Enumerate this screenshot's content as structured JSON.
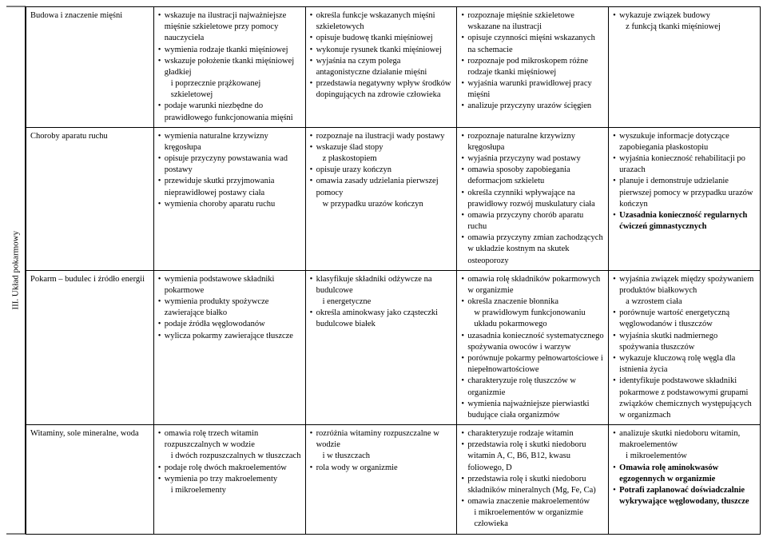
{
  "sideLabel": "III. Układ pokarmowy",
  "rows": [
    {
      "topic": "Budowa i znaczenie mięśni",
      "c2": [
        {
          "t": "wskazuje na ilustracji najważniejsze mięśnie szkieletowe przy pomocy nauczyciela"
        },
        {
          "t": "wymienia rodzaje tkanki mięśniowej"
        },
        {
          "t": "wskazuje położenie tkanki mięśniowej gładkiej",
          "sub": "i poprzecznie prążkowanej szkieletowej"
        },
        {
          "t": "podaje warunki niezbędne do prawidłowego funkcjonowania mięśni"
        }
      ],
      "c3": [
        {
          "t": "określa funkcje wskazanych mięśni szkieletowych"
        },
        {
          "t": "opisuje budowę tkanki mięśniowej"
        },
        {
          "t": "wykonuje rysunek tkanki mięśniowej"
        },
        {
          "t": "wyjaśnia na czym polega antagonistyczne działanie mięśni"
        },
        {
          "t": "przedstawia negatywny wpływ środków dopingujących na zdrowie człowieka"
        }
      ],
      "c4": [
        {
          "t": "rozpoznaje mięśnie szkieletowe wskazane na ilustracji"
        },
        {
          "t": "opisuje czynności mięśni wskazanych na schemacie"
        },
        {
          "t": "rozpoznaje pod mikroskopem różne rodzaje tkanki mięśniowej"
        },
        {
          "t": "wyjaśnia warunki prawidłowej pracy mięśni"
        },
        {
          "t": "analizuje przyczyny urazów ścięgien"
        }
      ],
      "c5": [
        {
          "t": "wykazuje związek budowy",
          "sub": "z funkcją tkanki mięśniowej"
        }
      ]
    },
    {
      "topic": "Choroby aparatu ruchu",
      "c2": [
        {
          "t": "wymienia naturalne krzywizny kręgosłupa"
        },
        {
          "t": "opisuje przyczyny powstawania wad postawy"
        },
        {
          "t": "przewiduje skutki przyjmowania nieprawidłowej postawy ciała"
        },
        {
          "t": "wymienia choroby aparatu ruchu"
        }
      ],
      "c3": [
        {
          "t": "rozpoznaje na ilustracji wady postawy"
        },
        {
          "t": "wskazuje ślad stopy",
          "sub": "z płaskostopiem"
        },
        {
          "t": "opisuje urazy kończyn"
        },
        {
          "t": "omawia zasady udzielania pierwszej pomocy",
          "sub": "w przypadku urazów kończyn"
        }
      ],
      "c4": [
        {
          "t": "rozpoznaje naturalne krzywizny kręgosłupa"
        },
        {
          "t": "wyjaśnia przyczyny wad postawy"
        },
        {
          "t": "omawia sposoby zapobiegania deformacjom szkieletu"
        },
        {
          "t": "określa czynniki wpływające na prawidłowy rozwój muskulatury ciała"
        },
        {
          "t": "omawia przyczyny chorób aparatu ruchu"
        },
        {
          "t": "omawia przyczyny zmian zachodzących w układzie kostnym na skutek osteoporozy"
        }
      ],
      "c5": [
        {
          "t": "wyszukuje informacje dotyczące zapobiegania płaskostopiu"
        },
        {
          "t": "wyjaśnia konieczność rehabilitacji po urazach"
        },
        {
          "t": "planuje i demonstruje udzielanie pierwszej pomocy w przypadku urazów kończyn"
        },
        {
          "t": "Uzasadnia konieczność regularnych ćwiczeń gimnastycznych",
          "bold": true,
          "nobullet": false
        }
      ]
    },
    {
      "topic": "Pokarm – budulec i źródło energii",
      "c2": [
        {
          "t": "wymienia podstawowe składniki pokarmowe"
        },
        {
          "t": "wymienia produkty spożywcze zawierające białko"
        },
        {
          "t": "podaje źródła węglowodanów"
        },
        {
          "t": "wylicza pokarmy zawierające tłuszcze"
        }
      ],
      "c3": [
        {
          "t": "klasyfikuje składniki odżywcze na budulcowe",
          "sub": "i energetyczne"
        },
        {
          "t": "określa aminokwasy jako cząsteczki budulcowe białek"
        }
      ],
      "c4": [
        {
          "t": "omawia rolę składników pokarmowych w organizmie"
        },
        {
          "t": "określa znaczenie błonnika",
          "sub": "w prawidłowym funkcjonowaniu układu pokarmowego"
        },
        {
          "t": "uzasadnia konieczność systematycznego spożywania owoców i warzyw"
        },
        {
          "t": "porównuje pokarmy pełnowartościowe i niepełnowartościowe"
        },
        {
          "t": "charakteryzuje rolę tłuszczów w organizmie"
        },
        {
          "t": "wymienia najważniejsze pierwiastki budujące ciała organizmów"
        }
      ],
      "c5": [
        {
          "t": "wyjaśnia związek między spożywaniem produktów białkowych",
          "sub": "a wzrostem ciała"
        },
        {
          "t": "porównuje wartość energetyczną węglowodanów i tłuszczów"
        },
        {
          "t": "wyjaśnia skutki nadmiernego spożywania tłuszczów"
        },
        {
          "t": "wykazuje kluczową rolę węgla dla istnienia życia"
        },
        {
          "t": "identyfikuje podstawowe składniki pokarmowe z podstawowymi grupami związków chemicznych występujących w organizmach"
        }
      ]
    },
    {
      "topic": "Witaminy, sole mineralne, woda",
      "c2": [
        {
          "t": "omawia rolę trzech witamin rozpuszczalnych w wodzie",
          "sub": "i dwóch rozpuszczalnych w tłuszczach"
        },
        {
          "t": "podaje rolę dwóch makroelementów"
        },
        {
          "t": "wymienia po trzy makroelementy",
          "sub": "i mikroelementy"
        }
      ],
      "c3": [
        {
          "t": "rozróżnia witaminy rozpuszczalne w wodzie",
          "sub": "i w tłuszczach"
        },
        {
          "t": "rola wody w organizmie"
        }
      ],
      "c4": [
        {
          "t": "charakteryzuje rodzaje witamin"
        },
        {
          "t": "przedstawia rolę i skutki niedoboru witamin A, C, B6, B12, kwasu foliowego, D"
        },
        {
          "t": "przedstawia rolę i skutki niedoboru składników mineralnych (Mg, Fe, Ca)"
        },
        {
          "t": "omawia znaczenie makroelementów",
          "sub": "i mikroelementów w organizmie człowieka"
        }
      ],
      "c5": [
        {
          "t": "analizuje skutki niedoboru witamin, makroelementów",
          "sub": "i mikroelementów"
        },
        {
          "t": "Omawia rolę aminokwasów egzogennych w organizmie",
          "bold": true
        },
        {
          "t": "Potrafi zaplanować doświadczalnie wykrywające  węglowodany, tłuszcze",
          "bold": true
        }
      ]
    }
  ]
}
